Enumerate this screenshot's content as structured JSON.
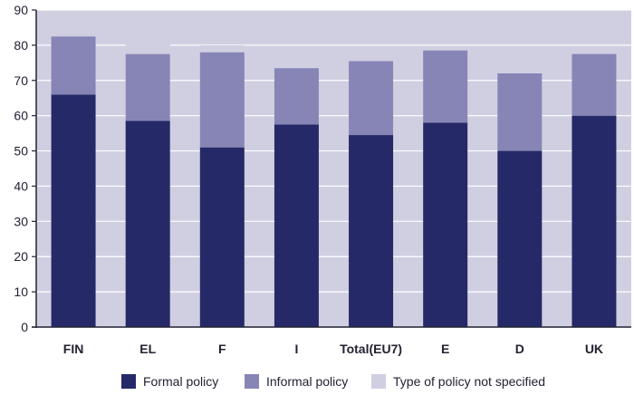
{
  "chart_data": {
    "type": "bar",
    "stacked": true,
    "categories": [
      "FIN",
      "EL",
      "F",
      "I",
      "Total(EU7)",
      "E",
      "D",
      "UK"
    ],
    "series": [
      {
        "name": "Formal policy",
        "values": [
          66,
          58.5,
          51,
          57.5,
          54.5,
          58,
          50,
          60
        ]
      },
      {
        "name": "Informal policy",
        "values": [
          16.5,
          19,
          27,
          16,
          21,
          20.5,
          22,
          17.5
        ]
      },
      {
        "name": "Type of policy not specified",
        "values": [
          1.5,
          5,
          2,
          6,
          3,
          0,
          6,
          0
        ]
      }
    ],
    "ylim": [
      0,
      90
    ],
    "yticks": [
      0,
      10,
      20,
      30,
      40,
      50,
      60,
      70,
      80,
      90
    ],
    "grid": true,
    "legend_position": "bottom",
    "colors": {
      "Formal policy": "#262968",
      "Informal policy": "#8785b6",
      "Type of policy not specified": "#d0cfe2",
      "plot_background": "#d0cfe2",
      "gridline": "#ffffff",
      "axis": "#222233"
    }
  }
}
